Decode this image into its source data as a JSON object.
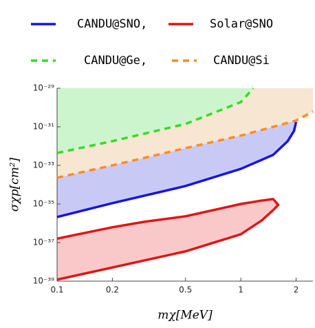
{
  "chart_data": {
    "type": "line",
    "xlabel": "mχ[MeV]",
    "ylabel": "σχp[cm²]",
    "x_log": true,
    "y_log": true,
    "xlim": [
      0.1,
      2.47
    ],
    "ylim": [
      1e-39,
      1e-29
    ],
    "xticks": [
      0.1,
      0.2,
      0.5,
      1,
      2
    ],
    "yticks": [
      {
        "value": 1e-39,
        "label": "10⁻³⁹"
      },
      {
        "value": 1e-37,
        "label": "10⁻³⁷"
      },
      {
        "value": 1e-35,
        "label": "10⁻³⁵"
      },
      {
        "value": 1e-33,
        "label": "10⁻³³"
      },
      {
        "value": 1e-31,
        "label": "10⁻³¹"
      },
      {
        "value": 1e-29,
        "label": "10⁻²⁹"
      }
    ],
    "series": [
      {
        "name": "CANDU@SNO,",
        "color": "#1515e0",
        "fill": "#c9c9f6",
        "dash": false,
        "closed": false,
        "x": [
          0.1,
          0.2,
          0.5,
          1,
          1.5,
          1.8,
          1.95,
          2.0
        ],
        "values": [
          2.1e-36,
          1.1e-35,
          8.5e-35,
          6.6e-34,
          3.5e-33,
          1.8e-32,
          6.2e-32,
          1.8e-31
        ]
      },
      {
        "name": "Solar@SNO",
        "color": "#e01515",
        "fill": "#f9c9c9",
        "dash": false,
        "closed": true,
        "x": [
          0.1,
          0.2,
          0.3,
          0.5,
          0.8,
          1,
          1.3,
          1.5,
          1.6,
          1.5,
          1.3,
          1,
          0.5,
          0.2,
          0.1
        ],
        "values": [
          1.6e-37,
          6.2e-37,
          1.2e-36,
          2.3e-36,
          6.2e-36,
          1e-35,
          1.5e-35,
          1.8e-35,
          9e-36,
          4.8e-36,
          1.4e-36,
          2.7e-37,
          3.5e-38,
          5.1e-39,
          1.2e-39
        ]
      },
      {
        "name": "CANDU@Ge,",
        "color": "#33dd22",
        "fill": "#cdf5cd",
        "dash": true,
        "closed": false,
        "x": [
          0.1,
          0.2,
          0.5,
          1,
          1.17
        ],
        "values": [
          4.4e-33,
          1.8e-32,
          1.4e-31,
          1.9e-30,
          1e-29
        ]
      },
      {
        "name": "CANDU@Si",
        "color": "#ff8a22",
        "fill": "#f6e6d2",
        "dash": true,
        "closed": false,
        "x": [
          0.1,
          0.2,
          0.5,
          1,
          2,
          2.47
        ],
        "values": [
          2.3e-34,
          1e-33,
          7.8e-33,
          3.5e-32,
          2.1e-31,
          6.2e-31
        ]
      }
    ]
  }
}
